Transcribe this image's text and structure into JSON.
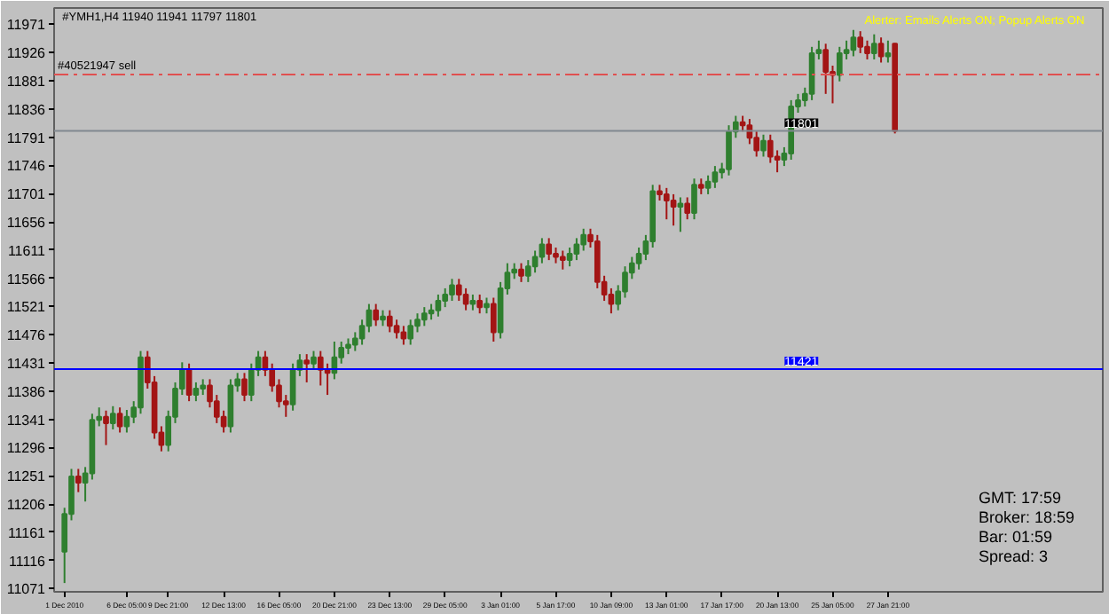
{
  "chart_data": {
    "type": "candlestick",
    "title": "#YMH1,H4  11940  11941  11797  11801",
    "categories": [
      "1 Dec 2010",
      null,
      null,
      null,
      null,
      null,
      null,
      null,
      null,
      "6 Dec 05:00",
      null,
      null,
      null,
      null,
      null,
      "9 Dec 21:00",
      null,
      null,
      null,
      null,
      null,
      null,
      null,
      "12 Dec 13:00",
      null,
      null,
      null,
      null,
      null,
      null,
      null,
      "16 Dec 05:00",
      null,
      null,
      null,
      null,
      null,
      null,
      null,
      "20 Dec 21:00",
      null,
      null,
      null,
      null,
      null,
      null,
      null,
      "23 Dec 13:00",
      null,
      null,
      null,
      null,
      null,
      null,
      null,
      "29 Dec 05:00",
      null,
      null,
      null,
      null,
      null,
      null,
      null,
      "3 Jan 01:00",
      null,
      null,
      null,
      null,
      null,
      null,
      null,
      "5 Jan 17:00",
      null,
      null,
      null,
      null,
      null,
      null,
      null,
      "10 Jan 09:00",
      null,
      null,
      null,
      null,
      null,
      null,
      null,
      "13 Jan 01:00",
      null,
      null,
      null,
      null,
      null,
      null,
      null,
      "17 Jan 17:00",
      null,
      null,
      null,
      null,
      null,
      null,
      null,
      "20 Jan 13:00",
      null,
      null,
      null,
      null,
      null,
      null,
      null,
      "25 Jan 05:00",
      null,
      null,
      null,
      null,
      null,
      null,
      null,
      "27 Jan 21:00",
      null
    ],
    "ohlc": [
      [
        11130,
        11200,
        11080,
        11190
      ],
      [
        11190,
        11262,
        11180,
        11250
      ],
      [
        11250,
        11262,
        11225,
        11240
      ],
      [
        11240,
        11265,
        11210,
        11255
      ],
      [
        11255,
        11350,
        11245,
        11340
      ],
      [
        11340,
        11360,
        11330,
        11345
      ],
      [
        11345,
        11355,
        11300,
        11335
      ],
      [
        11335,
        11362,
        11325,
        11350
      ],
      [
        11350,
        11360,
        11320,
        11330
      ],
      [
        11330,
        11356,
        11320,
        11345
      ],
      [
        11345,
        11370,
        11335,
        11360
      ],
      [
        11360,
        11450,
        11350,
        11440
      ],
      [
        11440,
        11450,
        11390,
        11400
      ],
      [
        11400,
        11410,
        11310,
        11320
      ],
      [
        11320,
        11330,
        11290,
        11300
      ],
      [
        11300,
        11355,
        11290,
        11345
      ],
      [
        11345,
        11400,
        11335,
        11390
      ],
      [
        11390,
        11432,
        11380,
        11420
      ],
      [
        11420,
        11430,
        11370,
        11380
      ],
      [
        11380,
        11400,
        11370,
        11390
      ],
      [
        11390,
        11405,
        11380,
        11395
      ],
      [
        11395,
        11405,
        11360,
        11370
      ],
      [
        11370,
        11380,
        11335,
        11345
      ],
      [
        11345,
        11355,
        11320,
        11330
      ],
      [
        11330,
        11405,
        11320,
        11395
      ],
      [
        11395,
        11415,
        11385,
        11405
      ],
      [
        11405,
        11415,
        11370,
        11380
      ],
      [
        11380,
        11430,
        11370,
        11420
      ],
      [
        11420,
        11450,
        11410,
        11440
      ],
      [
        11440,
        11450,
        11410,
        11420
      ],
      [
        11420,
        11430,
        11385,
        11395
      ],
      [
        11395,
        11405,
        11360,
        11370
      ],
      [
        11370,
        11380,
        11345,
        11365
      ],
      [
        11365,
        11430,
        11355,
        11420
      ],
      [
        11420,
        11445,
        11410,
        11435
      ],
      [
        11435,
        11445,
        11400,
        11430
      ],
      [
        11430,
        11450,
        11420,
        11440
      ],
      [
        11440,
        11450,
        11395,
        11420
      ],
      [
        11420,
        11430,
        11380,
        11415
      ],
      [
        11415,
        11465,
        11405,
        11440
      ],
      [
        11440,
        11465,
        11430,
        11455
      ],
      [
        11455,
        11470,
        11445,
        11460
      ],
      [
        11460,
        11480,
        11450,
        11470
      ],
      [
        11470,
        11500,
        11460,
        11490
      ],
      [
        11490,
        11525,
        11480,
        11515
      ],
      [
        11515,
        11525,
        11490,
        11500
      ],
      [
        11500,
        11515,
        11490,
        11505
      ],
      [
        11505,
        11515,
        11480,
        11490
      ],
      [
        11490,
        11500,
        11470,
        11480
      ],
      [
        11480,
        11490,
        11460,
        11470
      ],
      [
        11470,
        11500,
        11460,
        11490
      ],
      [
        11490,
        11510,
        11480,
        11500
      ],
      [
        11500,
        11520,
        11490,
        11510
      ],
      [
        11510,
        11525,
        11500,
        11515
      ],
      [
        11515,
        11540,
        11505,
        11530
      ],
      [
        11530,
        11550,
        11520,
        11540
      ],
      [
        11540,
        11565,
        11530,
        11555
      ],
      [
        11555,
        11565,
        11530,
        11540
      ],
      [
        11540,
        11550,
        11515,
        11525
      ],
      [
        11525,
        11540,
        11515,
        11530
      ],
      [
        11530,
        11540,
        11510,
        11520
      ],
      [
        11520,
        11535,
        11510,
        11525
      ],
      [
        11525,
        11535,
        11465,
        11480
      ],
      [
        11480,
        11560,
        11470,
        11550
      ],
      [
        11550,
        11590,
        11540,
        11575
      ],
      [
        11575,
        11590,
        11565,
        11580
      ],
      [
        11580,
        11590,
        11560,
        11570
      ],
      [
        11570,
        11595,
        11560,
        11585
      ],
      [
        11585,
        11610,
        11575,
        11600
      ],
      [
        11600,
        11630,
        11590,
        11620
      ],
      [
        11620,
        11630,
        11595,
        11605
      ],
      [
        11605,
        11615,
        11590,
        11600
      ],
      [
        11600,
        11610,
        11580,
        11595
      ],
      [
        11595,
        11615,
        11585,
        11605
      ],
      [
        11605,
        11630,
        11595,
        11620
      ],
      [
        11620,
        11645,
        11610,
        11635
      ],
      [
        11635,
        11645,
        11615,
        11625
      ],
      [
        11625,
        11635,
        11550,
        11560
      ],
      [
        11560,
        11570,
        11530,
        11540
      ],
      [
        11540,
        11550,
        11510,
        11525
      ],
      [
        11525,
        11555,
        11515,
        11545
      ],
      [
        11545,
        11585,
        11535,
        11575
      ],
      [
        11575,
        11600,
        11565,
        11590
      ],
      [
        11590,
        11615,
        11580,
        11605
      ],
      [
        11605,
        11635,
        11595,
        11625
      ],
      [
        11625,
        11715,
        11615,
        11705
      ],
      [
        11705,
        11715,
        11690,
        11700
      ],
      [
        11700,
        11710,
        11660,
        11690
      ],
      [
        11690,
        11700,
        11650,
        11680
      ],
      [
        11680,
        11695,
        11640,
        11685
      ],
      [
        11685,
        11695,
        11660,
        11670
      ],
      [
        11670,
        11725,
        11660,
        11715
      ],
      [
        11715,
        11725,
        11700,
        11710
      ],
      [
        11710,
        11730,
        11700,
        11720
      ],
      [
        11720,
        11745,
        11710,
        11735
      ],
      [
        11735,
        11750,
        11725,
        11740
      ],
      [
        11740,
        11810,
        11730,
        11800
      ],
      [
        11800,
        11825,
        11790,
        11815
      ],
      [
        11815,
        11825,
        11800,
        11810
      ],
      [
        11810,
        11820,
        11780,
        11790
      ],
      [
        11790,
        11800,
        11760,
        11770
      ],
      [
        11770,
        11795,
        11760,
        11785
      ],
      [
        11785,
        11795,
        11750,
        11760
      ],
      [
        11760,
        11770,
        11735,
        11755
      ],
      [
        11755,
        11775,
        11745,
        11765
      ],
      [
        11765,
        11850,
        11755,
        11840
      ],
      [
        11840,
        11860,
        11830,
        11850
      ],
      [
        11850,
        11870,
        11840,
        11860
      ],
      [
        11860,
        11935,
        11850,
        11925
      ],
      [
        11925,
        11945,
        11915,
        11930
      ],
      [
        11930,
        11940,
        11860,
        11895
      ],
      [
        11895,
        11905,
        11845,
        11890
      ],
      [
        11890,
        11935,
        11880,
        11925
      ],
      [
        11925,
        11945,
        11915,
        11930
      ],
      [
        11930,
        11962,
        11920,
        11950
      ],
      [
        11950,
        11960,
        11925,
        11935
      ],
      [
        11935,
        11945,
        11915,
        11925
      ],
      [
        11925,
        11955,
        11915,
        11940
      ],
      [
        11940,
        11950,
        11910,
        11920
      ],
      [
        11920,
        11945,
        11910,
        11925
      ],
      [
        11940,
        11941,
        11797,
        11801
      ]
    ],
    "colors": [
      "U",
      "U",
      "D",
      "U",
      "U",
      "U",
      "D",
      "U",
      "D",
      "U",
      "U",
      "U",
      "D",
      "D",
      "D",
      "U",
      "U",
      "U",
      "D",
      "U",
      "U",
      "D",
      "D",
      "D",
      "U",
      "U",
      "D",
      "U",
      "U",
      "D",
      "D",
      "D",
      "D",
      "U",
      "U",
      "D",
      "U",
      "D",
      "D",
      "U",
      "U",
      "U",
      "U",
      "U",
      "U",
      "D",
      "U",
      "D",
      "D",
      "D",
      "U",
      "U",
      "U",
      "U",
      "U",
      "U",
      "U",
      "D",
      "D",
      "U",
      "D",
      "U",
      "D",
      "U",
      "U",
      "U",
      "D",
      "U",
      "U",
      "U",
      "D",
      "D",
      "D",
      "U",
      "U",
      "U",
      "D",
      "D",
      "D",
      "D",
      "U",
      "U",
      "U",
      "U",
      "U",
      "U",
      "D",
      "D",
      "D",
      "U",
      "D",
      "U",
      "D",
      "U",
      "U",
      "U",
      "U",
      "U",
      "D",
      "D",
      "D",
      "U",
      "D",
      "D",
      "U",
      "U",
      "U",
      "U",
      "U",
      "U",
      "D",
      "D",
      "U",
      "U",
      "U",
      "D",
      "D",
      "U",
      "D",
      "U",
      "D"
    ],
    "ylim": [
      11066,
      11997
    ],
    "yticks": [
      11071,
      11116,
      11161,
      11206,
      11251,
      11296,
      11341,
      11386,
      11431,
      11476,
      11521,
      11566,
      11611,
      11656,
      11701,
      11746,
      11791,
      11836,
      11881,
      11926,
      11971
    ],
    "ref_lines": [
      {
        "axis": "y",
        "value": 11891,
        "label": "#40521947 sell",
        "color": "#e05050",
        "line_style": "dashed"
      },
      {
        "axis": "y",
        "value": 11801,
        "label": "11801",
        "color": "#808890"
      },
      {
        "axis": "y",
        "value": 11421,
        "label": "11421",
        "color": "#0000ff"
      }
    ],
    "annotations": [
      "Alerter:  Emails Alerts ON;  Popup Alerts ON",
      "GMT:   17:59",
      "Broker:   18:59",
      "Bar:   01:59",
      "Spread:   3"
    ],
    "grid": false
  }
}
